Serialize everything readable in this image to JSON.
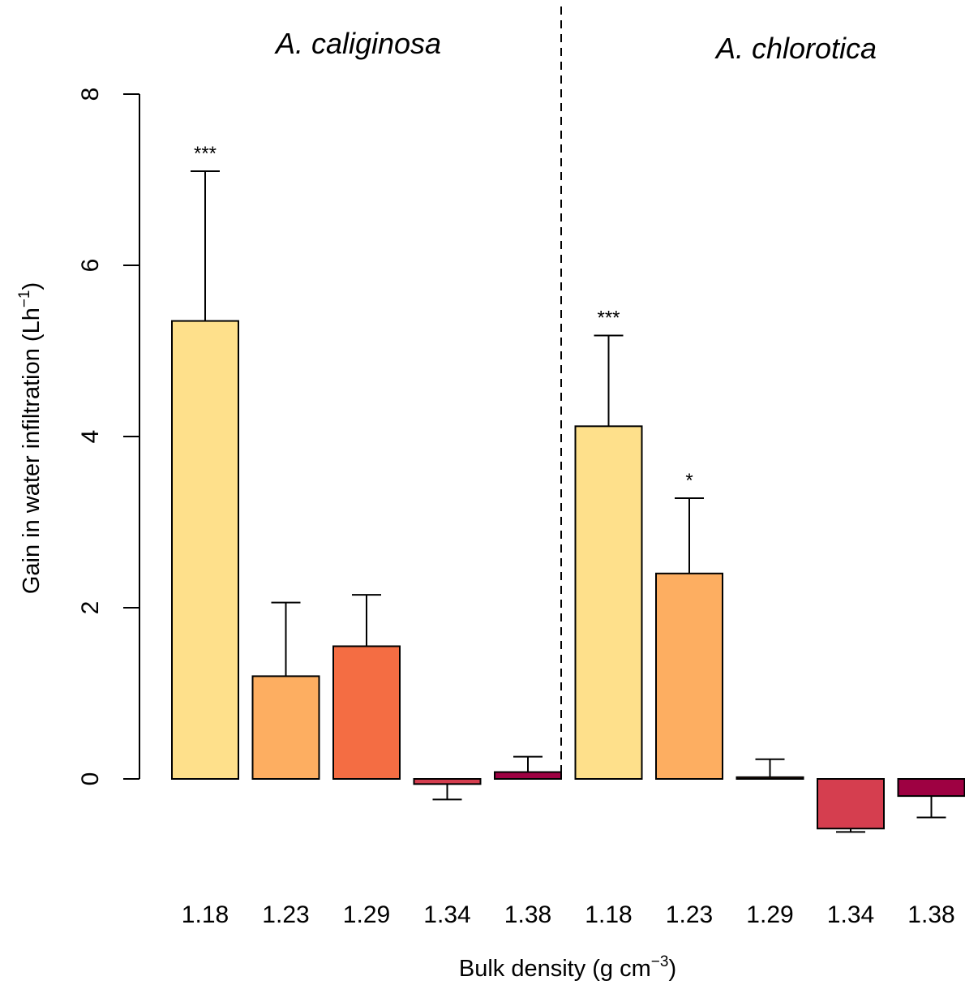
{
  "chart_data": {
    "type": "bar",
    "ylabel_main": "Gain in water infiltration (Lh",
    "ylabel_sup": "−1",
    "ylabel_close": ")",
    "xlabel_main": "Bulk density (g cm",
    "xlabel_sup": "−3",
    "xlabel_close": ")",
    "ylim": [
      -1,
      8
    ],
    "yticks": [
      0,
      2,
      4,
      6,
      8
    ],
    "grid": false,
    "panels": [
      {
        "title": "A. caliginosa",
        "categories": [
          "1.18",
          "1.23",
          "1.29",
          "1.34",
          "1.38"
        ],
        "values": [
          5.35,
          1.2,
          1.55,
          -0.06,
          0.08
        ],
        "error_upper": [
          7.1,
          2.06,
          2.15,
          null,
          0.26
        ],
        "error_lower": [
          null,
          null,
          null,
          -0.24,
          null
        ],
        "significance": [
          "***",
          "",
          "",
          "",
          ""
        ],
        "colors": [
          "#FEE08B",
          "#FDAE61",
          "#F46D43",
          "#D53E4F",
          "#9E0142"
        ]
      },
      {
        "title": "A. chlorotica",
        "categories": [
          "1.18",
          "1.23",
          "1.29",
          "1.34",
          "1.38"
        ],
        "values": [
          4.12,
          2.4,
          0.02,
          -0.58,
          -0.2
        ],
        "error_upper": [
          5.18,
          3.28,
          0.23,
          null,
          null
        ],
        "error_lower": [
          null,
          null,
          null,
          -0.62,
          -0.45
        ],
        "significance": [
          "***",
          "*",
          "",
          "",
          ""
        ],
        "colors": [
          "#FEE08B",
          "#FDAE61",
          "#F46D43",
          "#D53E4F",
          "#9E0142"
        ]
      }
    ]
  }
}
